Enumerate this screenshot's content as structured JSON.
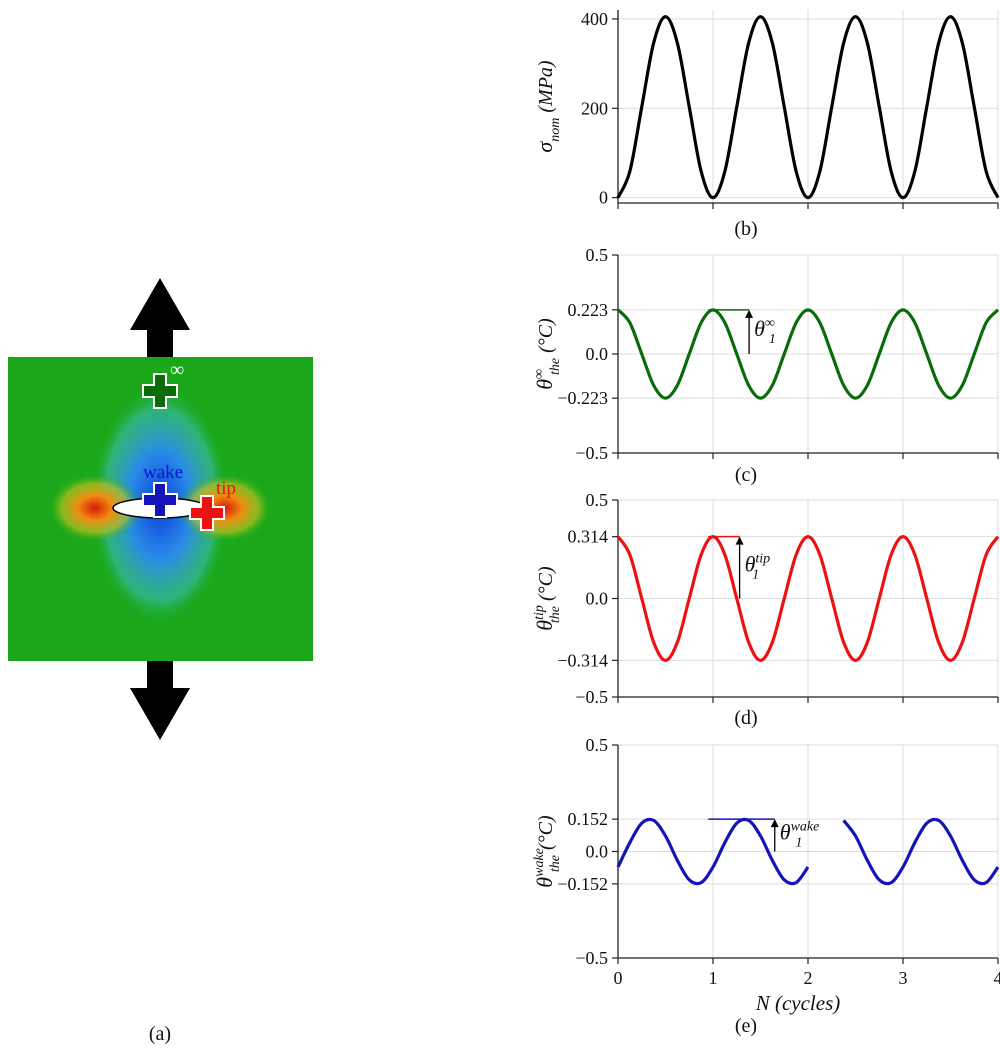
{
  "panel_a": {
    "caption": "(a)",
    "far_label": "∞",
    "wake_label": "wake",
    "tip_label": "tip"
  },
  "chart_data": [
    {
      "type": "line",
      "caption": "(b)",
      "color": "#000000",
      "ylabel": {
        "symbol": "σ",
        "sub": "nom",
        "unit": "(MPa)"
      },
      "x": [
        0,
        0.125,
        0.25,
        0.375,
        0.5,
        0.625,
        0.75,
        0.875,
        1,
        1.125,
        1.25,
        1.375,
        1.5,
        1.625,
        1.75,
        1.875,
        2,
        2.125,
        2.25,
        2.375,
        2.5,
        2.625,
        2.75,
        2.875,
        3,
        3.125,
        3.25,
        3.375,
        3.5,
        3.625,
        3.75,
        3.875,
        4
      ],
      "values": [
        0,
        59,
        203,
        346,
        405,
        346,
        203,
        59,
        0,
        59,
        203,
        346,
        405,
        346,
        203,
        59,
        0,
        59,
        203,
        346,
        405,
        346,
        203,
        59,
        0,
        59,
        203,
        346,
        405,
        346,
        203,
        59,
        0
      ],
      "xlim": [
        0,
        4
      ],
      "xticks": [
        0,
        1,
        2,
        3,
        4
      ],
      "ylim": [
        -12,
        420
      ],
      "yticks": [
        0,
        200,
        400
      ],
      "grid": true,
      "xticklabels": false
    },
    {
      "type": "line",
      "caption": "(c)",
      "color": "#0b6b0b",
      "ylabel": {
        "symbol": "θ",
        "sub": "the",
        "sup": "∞",
        "unit": "(°C)"
      },
      "annotation": {
        "symbol": "θ",
        "sub": "1",
        "sup": "∞"
      },
      "x": [
        0,
        0.125,
        0.25,
        0.375,
        0.5,
        0.625,
        0.75,
        0.875,
        1,
        1.125,
        1.25,
        1.375,
        1.5,
        1.625,
        1.75,
        1.875,
        2,
        2.125,
        2.25,
        2.375,
        2.5,
        2.625,
        2.75,
        2.875,
        3,
        3.125,
        3.25,
        3.375,
        3.5,
        3.625,
        3.75,
        3.875,
        4
      ],
      "values": [
        0.223,
        0.158,
        0,
        -0.158,
        -0.223,
        -0.158,
        0,
        0.158,
        0.223,
        0.158,
        0,
        -0.158,
        -0.223,
        -0.158,
        0,
        0.158,
        0.223,
        0.158,
        0,
        -0.158,
        -0.223,
        -0.158,
        0,
        0.158,
        0.223,
        0.158,
        0,
        -0.158,
        -0.223,
        -0.158,
        0,
        0.158,
        0.223
      ],
      "xlim": [
        0,
        4
      ],
      "xticks": [
        0,
        1,
        2,
        3,
        4
      ],
      "ylim": [
        -0.5,
        0.5
      ],
      "yticks": [
        {
          "value": -0.5,
          "label": "−0.5"
        },
        {
          "value": -0.223,
          "label": "−0.223"
        },
        {
          "value": 0,
          "label": "0.0"
        },
        0.223,
        0.5
      ],
      "grid": true,
      "xticklabels": false
    },
    {
      "type": "line",
      "caption": "(d)",
      "color": "#ee1111",
      "ylabel": {
        "symbol": "θ",
        "sub": "the",
        "sup": "tip",
        "unit": "(°C)"
      },
      "annotation": {
        "symbol": "θ",
        "sub": "1",
        "sup": "tip"
      },
      "x": [
        0,
        0.125,
        0.25,
        0.375,
        0.5,
        0.625,
        0.75,
        0.875,
        1,
        1.125,
        1.25,
        1.375,
        1.5,
        1.625,
        1.75,
        1.875,
        2,
        2.125,
        2.25,
        2.375,
        2.5,
        2.625,
        2.75,
        2.875,
        3,
        3.125,
        3.25,
        3.375,
        3.5,
        3.625,
        3.75,
        3.875,
        4
      ],
      "values": [
        0.314,
        0.222,
        0,
        -0.222,
        -0.314,
        -0.222,
        0,
        0.222,
        0.314,
        0.222,
        0,
        -0.222,
        -0.314,
        -0.222,
        0,
        0.222,
        0.314,
        0.222,
        0,
        -0.222,
        -0.314,
        -0.222,
        0,
        0.222,
        0.314,
        0.222,
        0,
        -0.222,
        -0.314,
        -0.222,
        0,
        0.222,
        0.314
      ],
      "xlim": [
        0,
        4
      ],
      "xticks": [
        0,
        1,
        2,
        3,
        4
      ],
      "ylim": [
        -0.5,
        0.5
      ],
      "yticks": [
        {
          "value": -0.5,
          "label": "−0.5"
        },
        {
          "value": -0.314,
          "label": "−0.314"
        },
        {
          "value": 0,
          "label": "0.0"
        },
        0.314,
        0.5
      ],
      "grid": true,
      "xticklabels": false
    },
    {
      "type": "line",
      "caption": "(e)",
      "color": "#1414b8",
      "ylabel": {
        "symbol": "θ",
        "sub": "the",
        "sup": "wake",
        "unit": "(°C)"
      },
      "annotation": {
        "symbol": "θ",
        "sub": "1",
        "sup": "wake"
      },
      "xlabel": "N (cycles)",
      "x": [
        0,
        0.125,
        0.25,
        0.375,
        0.5,
        0.625,
        0.75,
        0.875,
        1,
        1.125,
        1.25,
        1.375,
        1.5,
        1.625,
        1.75,
        1.875,
        2,
        2.125,
        2.25,
        2.375,
        2.5,
        2.625,
        2.75,
        2.875,
        3,
        3.125,
        3.25,
        3.375,
        3.5,
        3.625,
        3.75,
        3.875,
        4
      ],
      "values": [
        -0.073,
        0.042,
        0.133,
        0.146,
        0.073,
        -0.042,
        -0.133,
        -0.146,
        -0.073,
        0.042,
        0.133,
        0.146,
        0.073,
        -0.042,
        -0.133,
        -0.146,
        -0.073,
        null,
        null,
        0.146,
        0.073,
        -0.042,
        -0.133,
        -0.146,
        -0.073,
        0.042,
        0.133,
        0.146,
        0.073,
        -0.042,
        -0.133,
        -0.146,
        -0.073
      ],
      "xlim": [
        0,
        4
      ],
      "xticks": [
        0,
        1,
        2,
        3,
        4
      ],
      "ylim": [
        -0.5,
        0.5
      ],
      "yticks": [
        {
          "value": -0.5,
          "label": "−0.5"
        },
        {
          "value": -0.152,
          "label": "−0.152"
        },
        {
          "value": 0,
          "label": "0.0"
        },
        0.152,
        0.5
      ],
      "grid": true,
      "xticklabels": true
    }
  ]
}
